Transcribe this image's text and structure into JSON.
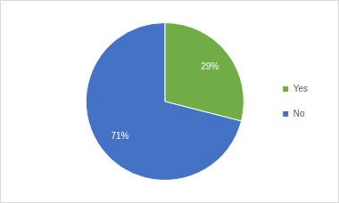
{
  "chart_data": {
    "type": "pie",
    "categories": [
      "Yes",
      "No"
    ],
    "values": [
      29,
      71
    ],
    "value_labels": [
      "29%",
      "71%"
    ],
    "colors": [
      "#70ad47",
      "#4472c4"
    ],
    "data_labels": true,
    "legend": "right"
  }
}
